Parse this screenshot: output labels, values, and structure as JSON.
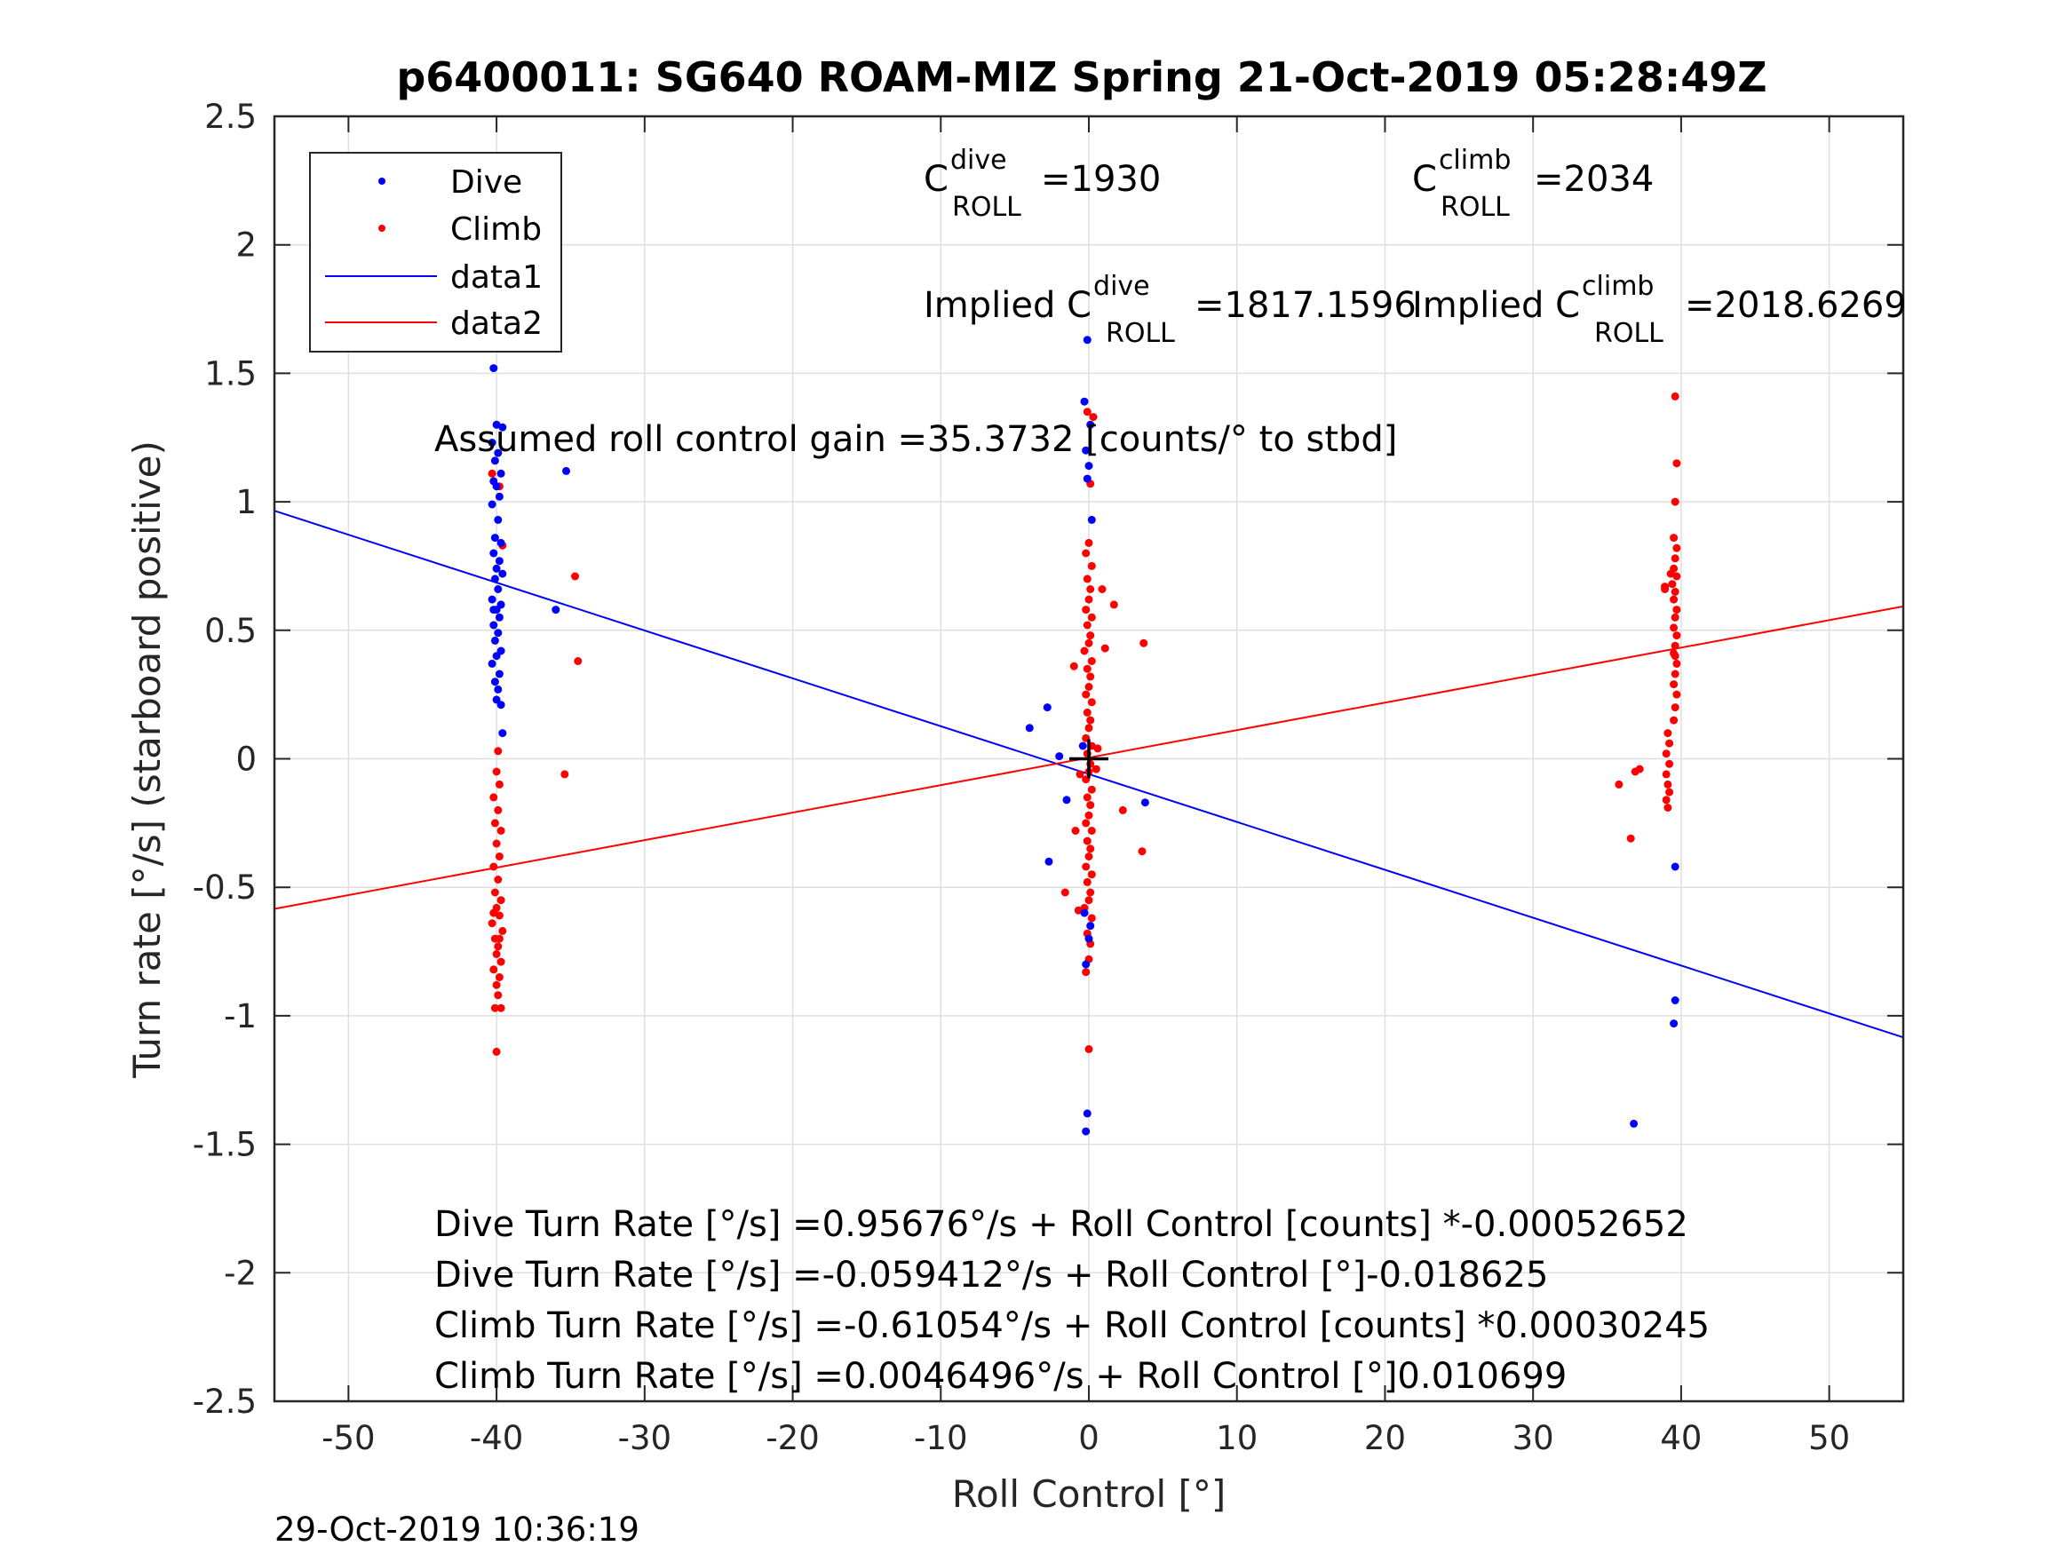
{
  "chart_data": {
    "type": "scatter",
    "title": "p6400011: SG640 ROAM-MIZ Spring 21-Oct-2019 05:28:49Z",
    "xlabel": "Roll Control [°]",
    "ylabel": "Turn rate [°/s] (starboard positive)",
    "xlim": [
      -55,
      55
    ],
    "ylim": [
      -2.5,
      2.5
    ],
    "x_ticks": [
      -50,
      -40,
      -30,
      -20,
      -10,
      0,
      10,
      20,
      30,
      40,
      50
    ],
    "x_tick_labels": [
      "-50",
      "-40",
      "-30",
      "-20",
      "-10",
      "0",
      "10",
      "20",
      "30",
      "40",
      "50"
    ],
    "y_ticks": [
      2.5,
      2,
      1.5,
      1,
      0.5,
      0,
      -0.5,
      -1,
      -1.5,
      -2,
      -2.5
    ],
    "y_tick_labels": [
      "2.5",
      "2",
      "1.5",
      "1",
      "0.5",
      "0",
      "-0.5",
      "-1",
      "-1.5",
      "-2",
      "-2.5"
    ],
    "grid": true,
    "legend_position": "top-left",
    "colors": {
      "dive": "#0000ff",
      "climb": "#ff0000",
      "origin_marker": "#000000"
    },
    "series": [
      {
        "name": "Dive",
        "kind": "points",
        "points": [
          [
            -40.2,
            1.52
          ],
          [
            -40.0,
            1.3
          ],
          [
            -39.6,
            1.29
          ],
          [
            -40.3,
            1.23
          ],
          [
            -39.9,
            1.19
          ],
          [
            -40.1,
            1.16
          ],
          [
            -39.7,
            1.11
          ],
          [
            -40.2,
            1.08
          ],
          [
            -40.0,
            1.06
          ],
          [
            -39.8,
            1.02
          ],
          [
            -40.3,
            0.99
          ],
          [
            -39.9,
            0.93
          ],
          [
            -40.1,
            0.86
          ],
          [
            -39.7,
            0.84
          ],
          [
            -40.2,
            0.8
          ],
          [
            -39.8,
            0.77
          ],
          [
            -40.0,
            0.74
          ],
          [
            -39.6,
            0.72
          ],
          [
            -40.1,
            0.7
          ],
          [
            -39.9,
            0.66
          ],
          [
            -40.3,
            0.62
          ],
          [
            -39.7,
            0.6
          ],
          [
            -40.0,
            0.58
          ],
          [
            -39.8,
            0.55
          ],
          [
            -40.2,
            0.52
          ],
          [
            -39.9,
            0.49
          ],
          [
            -40.1,
            0.46
          ],
          [
            -39.7,
            0.42
          ],
          [
            -40.0,
            0.4
          ],
          [
            -40.3,
            0.37
          ],
          [
            -39.8,
            0.33
          ],
          [
            -40.1,
            0.3
          ],
          [
            -39.9,
            0.27
          ],
          [
            -40.0,
            0.23
          ],
          [
            -39.7,
            0.21
          ],
          [
            -40.2,
            0.58
          ],
          [
            -39.6,
            0.1
          ],
          [
            -35.3,
            1.12
          ],
          [
            -36.0,
            0.58
          ],
          [
            -0.1,
            1.63
          ],
          [
            -0.3,
            1.39
          ],
          [
            0.1,
            1.3
          ],
          [
            -0.2,
            1.2
          ],
          [
            0.0,
            1.14
          ],
          [
            -0.1,
            1.09
          ],
          [
            0.2,
            0.93
          ],
          [
            -4.0,
            0.12
          ],
          [
            -2.8,
            0.2
          ],
          [
            -2.0,
            0.01
          ],
          [
            -1.5,
            -0.16
          ],
          [
            -2.7,
            -0.4
          ],
          [
            -0.3,
            -0.6
          ],
          [
            0.1,
            -0.65
          ],
          [
            -0.2,
            -0.8
          ],
          [
            0.0,
            -0.7
          ],
          [
            -0.4,
            0.05
          ],
          [
            3.8,
            -0.17
          ],
          [
            -0.1,
            -1.38
          ],
          [
            -0.2,
            -1.45
          ],
          [
            39.6,
            -0.42
          ],
          [
            39.6,
            -0.94
          ],
          [
            39.5,
            -1.03
          ],
          [
            36.8,
            -1.42
          ]
        ]
      },
      {
        "name": "Climb",
        "kind": "points",
        "points": [
          [
            -40.3,
            1.11
          ],
          [
            -39.8,
            1.06
          ],
          [
            -39.6,
            0.83
          ],
          [
            -34.7,
            0.71
          ],
          [
            -34.5,
            0.38
          ],
          [
            -35.4,
            -0.06
          ],
          [
            -40.0,
            -0.05
          ],
          [
            -39.8,
            -0.1
          ],
          [
            -40.2,
            -0.15
          ],
          [
            -39.9,
            -0.2
          ],
          [
            -40.1,
            -0.25
          ],
          [
            -39.7,
            -0.28
          ],
          [
            -40.0,
            -0.33
          ],
          [
            -39.8,
            -0.38
          ],
          [
            -40.2,
            -0.42
          ],
          [
            -39.9,
            -0.47
          ],
          [
            -40.1,
            -0.52
          ],
          [
            -39.7,
            -0.55
          ],
          [
            -40.0,
            -0.58
          ],
          [
            -39.8,
            -0.61
          ],
          [
            -40.3,
            -0.64
          ],
          [
            -39.6,
            -0.67
          ],
          [
            -40.1,
            -0.7
          ],
          [
            -39.9,
            -0.73
          ],
          [
            -40.0,
            -0.76
          ],
          [
            -39.7,
            -0.79
          ],
          [
            -40.2,
            -0.82
          ],
          [
            -39.8,
            -0.85
          ],
          [
            -40.0,
            -0.88
          ],
          [
            -39.9,
            -0.92
          ],
          [
            -40.1,
            -0.97
          ],
          [
            -39.7,
            -0.97
          ],
          [
            -40.0,
            -1.14
          ],
          [
            -39.9,
            0.03
          ],
          [
            -40.2,
            -0.6
          ],
          [
            -39.8,
            -0.7
          ],
          [
            -0.1,
            1.35
          ],
          [
            0.3,
            1.33
          ],
          [
            0.1,
            1.07
          ],
          [
            0.0,
            0.84
          ],
          [
            -0.2,
            0.8
          ],
          [
            0.2,
            0.75
          ],
          [
            -0.1,
            0.7
          ],
          [
            0.1,
            0.66
          ],
          [
            0.0,
            0.62
          ],
          [
            -0.2,
            0.58
          ],
          [
            0.2,
            0.55
          ],
          [
            -0.1,
            0.52
          ],
          [
            0.1,
            0.48
          ],
          [
            0.0,
            0.45
          ],
          [
            -0.3,
            0.42
          ],
          [
            0.2,
            0.38
          ],
          [
            -0.1,
            0.35
          ],
          [
            0.1,
            0.32
          ],
          [
            0.0,
            0.28
          ],
          [
            -0.2,
            0.25
          ],
          [
            0.2,
            0.22
          ],
          [
            -0.1,
            0.18
          ],
          [
            0.1,
            0.15
          ],
          [
            0.0,
            0.12
          ],
          [
            -0.2,
            0.08
          ],
          [
            0.2,
            0.05
          ],
          [
            -0.1,
            0.02
          ],
          [
            0.1,
            -0.02
          ],
          [
            0.0,
            -0.05
          ],
          [
            -0.2,
            -0.08
          ],
          [
            0.2,
            -0.12
          ],
          [
            -0.1,
            -0.15
          ],
          [
            0.1,
            -0.18
          ],
          [
            0.0,
            -0.22
          ],
          [
            -0.2,
            -0.25
          ],
          [
            0.2,
            -0.28
          ],
          [
            -0.1,
            -0.32
          ],
          [
            0.1,
            -0.35
          ],
          [
            0.0,
            -0.38
          ],
          [
            -0.2,
            -0.42
          ],
          [
            0.2,
            -0.45
          ],
          [
            -0.1,
            -0.48
          ],
          [
            0.1,
            -0.52
          ],
          [
            0.0,
            -0.55
          ],
          [
            -0.3,
            -0.58
          ],
          [
            0.2,
            -0.62
          ],
          [
            -0.1,
            -0.68
          ],
          [
            0.1,
            -0.72
          ],
          [
            0.0,
            -0.78
          ],
          [
            -0.2,
            -0.83
          ],
          [
            0.0,
            -1.13
          ],
          [
            1.7,
            0.6
          ],
          [
            1.1,
            0.43
          ],
          [
            0.9,
            0.66
          ],
          [
            3.7,
            0.45
          ],
          [
            -1.0,
            0.36
          ],
          [
            -1.6,
            -0.52
          ],
          [
            -0.9,
            -0.28
          ],
          [
            2.3,
            -0.2
          ],
          [
            3.6,
            -0.36
          ],
          [
            -0.6,
            -0.06
          ],
          [
            0.5,
            -0.04
          ],
          [
            -0.7,
            -0.59
          ],
          [
            0.6,
            0.04
          ],
          [
            39.6,
            1.41
          ],
          [
            39.7,
            1.15
          ],
          [
            39.6,
            1.0
          ],
          [
            39.5,
            0.86
          ],
          [
            39.7,
            0.82
          ],
          [
            39.6,
            0.78
          ],
          [
            39.5,
            0.74
          ],
          [
            39.7,
            0.71
          ],
          [
            39.4,
            0.68
          ],
          [
            39.6,
            0.65
          ],
          [
            39.5,
            0.62
          ],
          [
            39.7,
            0.58
          ],
          [
            39.6,
            0.55
          ],
          [
            39.5,
            0.51
          ],
          [
            39.7,
            0.48
          ],
          [
            39.6,
            0.44
          ],
          [
            39.5,
            0.41
          ],
          [
            39.7,
            0.37
          ],
          [
            39.6,
            0.33
          ],
          [
            39.5,
            0.29
          ],
          [
            39.7,
            0.25
          ],
          [
            39.6,
            0.2
          ],
          [
            39.5,
            0.15
          ],
          [
            39.1,
            0.1
          ],
          [
            39.2,
            0.06
          ],
          [
            39.0,
            0.02
          ],
          [
            39.2,
            -0.02
          ],
          [
            39.0,
            -0.06
          ],
          [
            39.1,
            -0.1
          ],
          [
            39.2,
            -0.13
          ],
          [
            39.0,
            -0.16
          ],
          [
            39.1,
            -0.19
          ],
          [
            38.9,
            0.67
          ],
          [
            39.3,
            0.72
          ],
          [
            38.9,
            0.66
          ],
          [
            39.6,
            0.4
          ],
          [
            37.2,
            -0.04
          ],
          [
            36.9,
            -0.05
          ],
          [
            35.8,
            -0.1
          ],
          [
            36.6,
            -0.31
          ]
        ]
      },
      {
        "name": "data1",
        "kind": "line",
        "x": [
          -55,
          55
        ],
        "y": [
          0.965,
          -1.084
        ]
      },
      {
        "name": "data2",
        "kind": "line",
        "x": [
          -55,
          55
        ],
        "y": [
          -0.584,
          0.593
        ]
      },
      {
        "name": "",
        "kind": "marker",
        "marker": "+",
        "x": [
          0
        ],
        "y": [
          0
        ]
      }
    ],
    "annotations": {
      "c_dive": {
        "base": "C",
        "sup": "dive",
        "sub": "ROLL",
        "value": "=1930"
      },
      "c_climb": {
        "base": "C",
        "sup": "climb",
        "sub": "ROLL",
        "value": "=2034"
      },
      "implied_dive": {
        "base": "Implied C",
        "sup": "dive",
        "sub": "ROLL",
        "value": "=1817.1596"
      },
      "implied_climb": {
        "base": "Implied C",
        "sup": "climb",
        "sub": "ROLL",
        "value": "=2018.6269"
      },
      "gain": "Assumed roll control gain =35.3732 [counts/° to stbd]",
      "equations": [
        "Dive Turn Rate [°/s] =0.95676°/s + Roll Control [counts] *-0.00052652",
        "Dive Turn Rate [°/s] =-0.059412°/s + Roll Control [°]-0.018625",
        "Climb Turn Rate [°/s] =-0.61054°/s + Roll Control [counts] *0.00030245",
        "Climb Turn Rate [°/s] =0.0046496°/s + Roll Control [°]0.010699"
      ]
    },
    "footer": "29-Oct-2019 10:36:19"
  }
}
